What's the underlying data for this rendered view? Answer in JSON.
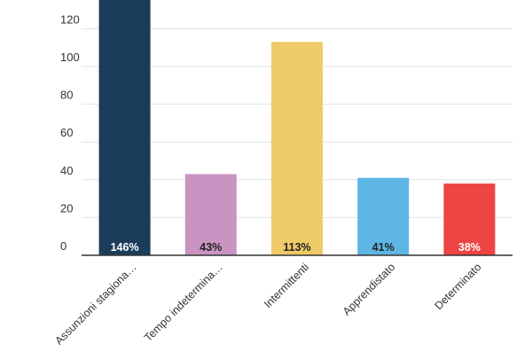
{
  "chart_data": {
    "type": "bar",
    "categories": [
      "Assunzioni stagiona…",
      "Tempo indetermina…",
      "Intermittenti",
      "Apprendistato",
      "Determinato"
    ],
    "values": [
      146,
      43,
      113,
      41,
      38
    ],
    "data_labels": [
      "146%",
      "43%",
      "113%",
      "41%",
      "38%"
    ],
    "colors": [
      "#1b3d5a",
      "#c994c2",
      "#efca68",
      "#5db6e4",
      "#ee4444"
    ],
    "label_colors": [
      "#ffffff",
      "#222222",
      "#222222",
      "#222222",
      "#ffffff"
    ],
    "ylim": [
      0,
      130
    ],
    "yticks": [
      0,
      20,
      40,
      60,
      80,
      100,
      120
    ],
    "title": "",
    "xlabel": "",
    "ylabel": "",
    "grid": true,
    "legend": "none"
  }
}
